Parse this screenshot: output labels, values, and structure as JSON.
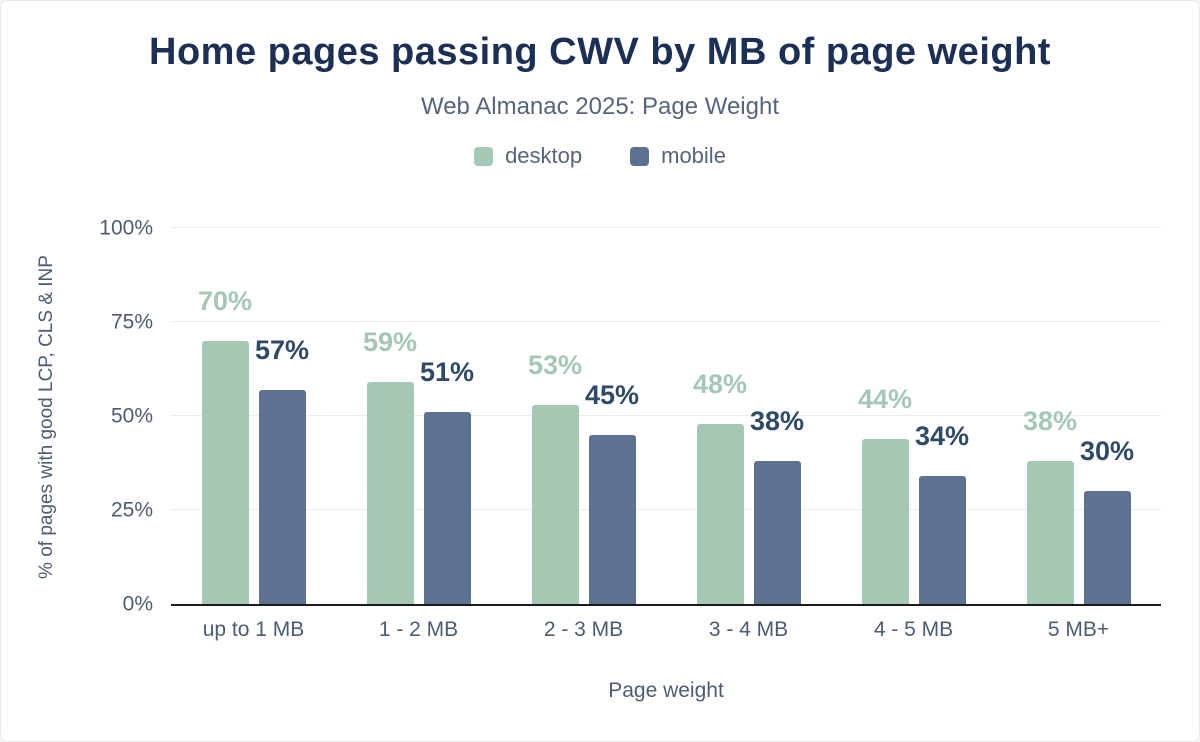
{
  "chart_data": {
    "type": "bar",
    "title": "Home pages passing CWV by MB of page weight",
    "subtitle": "Web Almanac 2025: Page Weight",
    "xlabel": "Page weight",
    "ylabel": "% of pages with good LCP, CLS & INP",
    "categories": [
      "up to 1 MB",
      "1 - 2 MB",
      "2 - 3 MB",
      "3 - 4 MB",
      "4 - 5 MB",
      "5 MB+"
    ],
    "series": [
      {
        "name": "desktop",
        "color": "#a4c8b4",
        "label_color": "#a4c8b4",
        "values": [
          70,
          59,
          53,
          48,
          44,
          38
        ],
        "labels": [
          "70%",
          "59%",
          "53%",
          "48%",
          "44%",
          "38%"
        ]
      },
      {
        "name": "mobile",
        "color": "#5d7191",
        "label_color": "#2f4a67",
        "values": [
          57,
          51,
          45,
          38,
          34,
          30
        ],
        "labels": [
          "57%",
          "51%",
          "45%",
          "38%",
          "34%",
          "30%"
        ]
      }
    ],
    "ylim": [
      0,
      100
    ],
    "y_ticks": [
      {
        "value": 0,
        "label": "0%"
      },
      {
        "value": 25,
        "label": "25%"
      },
      {
        "value": 50,
        "label": "50%"
      },
      {
        "value": 75,
        "label": "75%"
      },
      {
        "value": 100,
        "label": "100%"
      }
    ],
    "grid": "horizontal",
    "legend_position": "top"
  },
  "theme": {
    "background": "#ffffff",
    "title_color": "#1c2f54",
    "subtitle_color": "#56657a",
    "axis_text_color": "#4c5c73",
    "grid_color": "#ececec",
    "axis_line_color": "#1c1c1c"
  }
}
